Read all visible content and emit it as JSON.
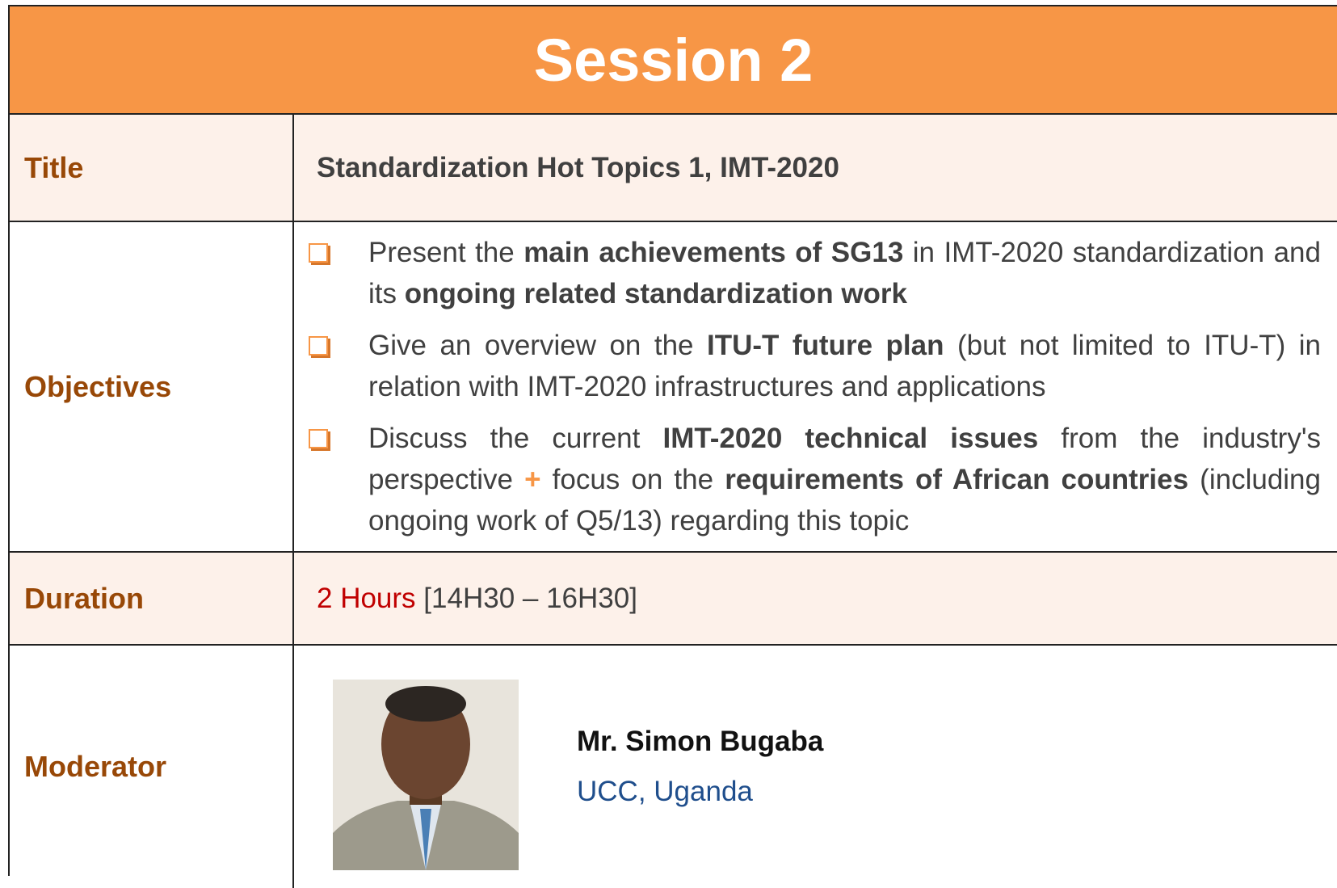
{
  "header": {
    "title": "Session 2"
  },
  "rows": {
    "title": {
      "label": "Title",
      "text": "Standardization Hot Topics 1, IMT-2020"
    },
    "objectives": {
      "label": "Objectives",
      "items": [
        [
          {
            "text": "Present the ",
            "style": "normal"
          },
          {
            "text": "main achievements of SG13",
            "style": "bold"
          },
          {
            "text": " in IMT-2020 standardization and its ",
            "style": "normal"
          },
          {
            "text": "ongoing related standardization work",
            "style": "bold"
          }
        ],
        [
          {
            "text": "Give an overview on the ",
            "style": "normal"
          },
          {
            "text": "ITU-T future plan",
            "style": "bold"
          },
          {
            "text": " (but not limited to ITU-T) in relation with IMT-2020 infrastructures and applications",
            "style": "normal"
          }
        ],
        [
          {
            "text": "Discuss the current ",
            "style": "normal"
          },
          {
            "text": "IMT-2020 technical issues",
            "style": "bold"
          },
          {
            "text": " from the industry's perspective ",
            "style": "normal"
          },
          {
            "text": "+",
            "style": "accent"
          },
          {
            "text": " focus on the ",
            "style": "normal"
          },
          {
            "text": "requirements of African countries",
            "style": "bold"
          },
          {
            "text": " (including ongoing work of Q5/13) regarding this topic",
            "style": "normal"
          }
        ]
      ]
    },
    "duration": {
      "label": "Duration",
      "hours": "2 Hours",
      "time": "[14H30 – 16H30]"
    },
    "moderator": {
      "label": "Moderator",
      "name": "Mr. Simon Bugaba",
      "affiliation": "UCC, Uganda"
    }
  }
}
